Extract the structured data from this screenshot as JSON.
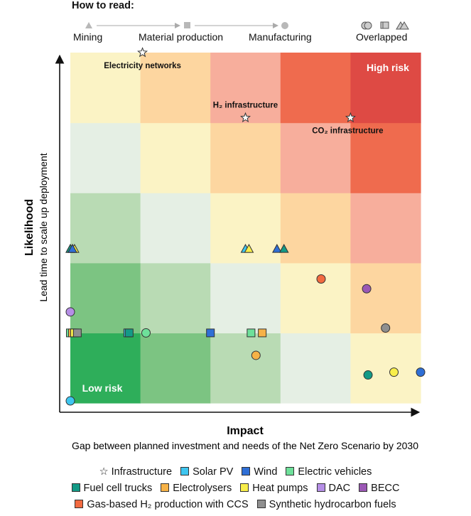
{
  "how_to_read": {
    "title": "How to read:",
    "stages": [
      "Mining",
      "Material production",
      "Manufacturing",
      "Overlapped"
    ]
  },
  "chart_data": {
    "type": "scatter",
    "xlabel": "Impact",
    "xlabel_sub": "Gap between planned investment and needs of the Net Zero Scenario by 2030",
    "ylabel": "Likelihood",
    "ylabel_sub": "Lead time to scale up deployment",
    "xlim": [
      0,
      5
    ],
    "ylim": [
      0,
      5
    ],
    "grid_colors": [
      [
        "#2eae5a",
        "#7cc482",
        "#b9dbb4",
        "#e5efe4",
        "#fbf3c5"
      ],
      [
        "#7cc482",
        "#b9dbb4",
        "#e5efe4",
        "#fbf3c5",
        "#fdd6a0"
      ],
      [
        "#b9dbb4",
        "#e5efe4",
        "#fbf3c5",
        "#fdd6a0",
        "#f7ae9c"
      ],
      [
        "#e5efe4",
        "#fbf3c5",
        "#fdd6a0",
        "#f7ae9c",
        "#ef6b4e"
      ],
      [
        "#fbf3c5",
        "#fdd6a0",
        "#f7ae9c",
        "#ef6b4e",
        "#de4a44"
      ]
    ],
    "zone_labels": {
      "high": "High risk",
      "low": "Low risk"
    },
    "infrastructure": [
      {
        "label": "Electricity networks",
        "x": 1.03,
        "y": 5.0
      },
      {
        "label": "H₂ infrastructure",
        "x": 2.5,
        "y": 4.07
      },
      {
        "label": "CO₂ infrastructure",
        "x": 4.0,
        "y": 4.07
      }
    ],
    "points": [
      {
        "tech": "Solar PV",
        "stage": "mining",
        "x": 0.0,
        "y": 2.2
      },
      {
        "tech": "Electrolysers",
        "stage": "mining",
        "x": 0.03,
        "y": 2.2
      },
      {
        "tech": "Heat pumps",
        "stage": "mining",
        "x": 0.06,
        "y": 2.2
      },
      {
        "tech": "Fuel cell trucks",
        "stage": "mining",
        "x": 0.0,
        "y": 2.2
      },
      {
        "tech": "Wind",
        "stage": "mining",
        "x": 0.03,
        "y": 2.2
      },
      {
        "tech": "Solar PV",
        "stage": "mining",
        "x": 2.5,
        "y": 2.2
      },
      {
        "tech": "Heat pumps",
        "stage": "mining",
        "x": 2.55,
        "y": 2.2
      },
      {
        "tech": "Wind",
        "stage": "mining",
        "x": 2.95,
        "y": 2.2
      },
      {
        "tech": "Fuel cell trucks",
        "stage": "mining",
        "x": 3.05,
        "y": 2.2
      },
      {
        "tech": "Electric vehicles",
        "stage": "material",
        "x": 0.0,
        "y": 1.0
      },
      {
        "tech": "Electrolysers",
        "stage": "material",
        "x": 0.03,
        "y": 1.0
      },
      {
        "tech": "Heat pumps",
        "stage": "material",
        "x": 0.06,
        "y": 1.0
      },
      {
        "tech": "Synthetic hydrocarbon fuels",
        "stage": "material",
        "x": 0.1,
        "y": 1.0
      },
      {
        "tech": "Solar PV",
        "stage": "material",
        "x": 0.82,
        "y": 1.0
      },
      {
        "tech": "Fuel cell trucks",
        "stage": "material",
        "x": 0.84,
        "y": 1.0
      },
      {
        "tech": "Wind",
        "stage": "material",
        "x": 2.0,
        "y": 1.0
      },
      {
        "tech": "Electric vehicles",
        "stage": "material",
        "x": 2.58,
        "y": 1.0
      },
      {
        "tech": "Electrolysers",
        "stage": "material",
        "x": 2.74,
        "y": 1.0
      },
      {
        "tech": "DAC",
        "stage": "manufacturing",
        "x": 0.0,
        "y": 1.3
      },
      {
        "tech": "Solar PV",
        "stage": "manufacturing",
        "x": 0.0,
        "y": 0.03
      },
      {
        "tech": "Electric vehicles",
        "stage": "manufacturing",
        "x": 1.08,
        "y": 1.0
      },
      {
        "tech": "Electrolysers",
        "stage": "manufacturing",
        "x": 2.65,
        "y": 0.68
      },
      {
        "tech": "Gas-based H₂ production with CCS",
        "stage": "manufacturing",
        "x": 3.58,
        "y": 1.77
      },
      {
        "tech": "BECC",
        "stage": "manufacturing",
        "x": 4.23,
        "y": 1.63
      },
      {
        "tech": "Synthetic hydrocarbon fuels",
        "stage": "manufacturing",
        "x": 4.5,
        "y": 1.07
      },
      {
        "tech": "Fuel cell trucks",
        "stage": "manufacturing",
        "x": 4.25,
        "y": 0.4
      },
      {
        "tech": "Heat pumps",
        "stage": "manufacturing",
        "x": 4.62,
        "y": 0.44
      },
      {
        "tech": "Wind",
        "stage": "manufacturing",
        "x": 5.0,
        "y": 0.44
      }
    ]
  },
  "legend": [
    {
      "name": "Infrastructure",
      "color": "#ffffff",
      "kind": "star"
    },
    {
      "name": "Solar PV",
      "color": "#3ec6f0",
      "kind": "square"
    },
    {
      "name": "Wind",
      "color": "#2f6fd6",
      "kind": "square"
    },
    {
      "name": "Electric vehicles",
      "color": "#6ee09a",
      "kind": "square"
    },
    {
      "name": "Fuel cell trucks",
      "color": "#139a86",
      "kind": "square"
    },
    {
      "name": "Electrolysers",
      "color": "#f6b247",
      "kind": "square"
    },
    {
      "name": "Heat pumps",
      "color": "#f8ee4a",
      "kind": "square"
    },
    {
      "name": "DAC",
      "color": "#b58ee6",
      "kind": "square"
    },
    {
      "name": "BECC",
      "color": "#9b58b5",
      "kind": "square"
    },
    {
      "name": "Gas-based H₂ production with CCS",
      "color": "#f26a40",
      "kind": "square"
    },
    {
      "name": "Synthetic hydrocarbon fuels",
      "color": "#8f8f8f",
      "kind": "square"
    }
  ]
}
